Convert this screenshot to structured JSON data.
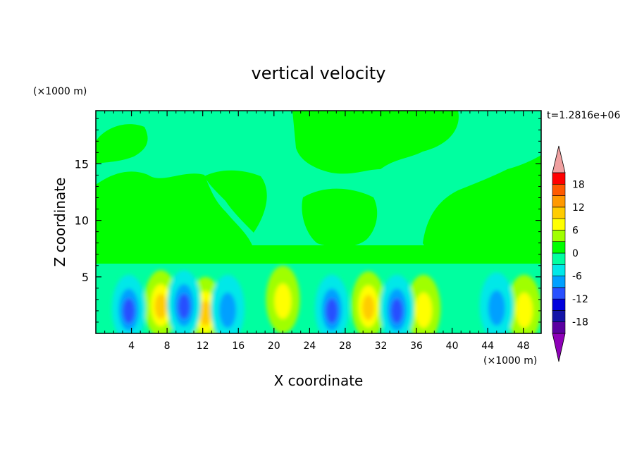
{
  "chart_data": {
    "type": "heatmap",
    "title": "vertical velocity",
    "xlabel": "X coordinate",
    "ylabel": "Z coordinate",
    "x_unit": "(×1000 m)",
    "y_unit": "(×1000 m)",
    "time_label": "t=1.2816e+06",
    "xlim": [
      0,
      50
    ],
    "ylim": [
      0,
      19.7
    ],
    "x_ticks": [
      4,
      8,
      12,
      16,
      20,
      24,
      28,
      32,
      36,
      40,
      44,
      48
    ],
    "y_ticks": [
      5,
      10,
      15
    ],
    "colorbar": {
      "levels": [
        -21,
        -18,
        -15,
        -12,
        -9,
        -6,
        -3,
        0,
        3,
        6,
        9,
        12,
        15,
        18,
        21
      ],
      "tick_labels": [
        18,
        12,
        6,
        0,
        -6,
        -12,
        -18
      ],
      "colors": [
        "#b0f0f0",
        "#8e00b8",
        "#5a00a0",
        "#1414a8",
        "#0000dc",
        "#2850ff",
        "#00a0ff",
        "#00e8e8",
        "#00ffa0",
        "#00ff00",
        "#a0ff00",
        "#ffff00",
        "#ffcc00",
        "#ff9900",
        "#ff5a00",
        "#ff0000",
        "#f0a0a0"
      ]
    },
    "updrafts": [
      {
        "x": 7.3,
        "z": 2.6,
        "peak": 10.5
      },
      {
        "x": 12.3,
        "z": 2.0,
        "peak": 9
      },
      {
        "x": 21.0,
        "z": 3.0,
        "peak": 6.5
      },
      {
        "x": 30.6,
        "z": 2.5,
        "peak": 11
      },
      {
        "x": 36.8,
        "z": 2.2,
        "peak": 8
      },
      {
        "x": 48.1,
        "z": 2.2,
        "peak": 8
      }
    ],
    "downdrafts": [
      {
        "x": 3.7,
        "z": 2.2,
        "peak": -10
      },
      {
        "x": 9.9,
        "z": 2.6,
        "peak": -10
      },
      {
        "x": 14.8,
        "z": 2.2,
        "peak": -6
      },
      {
        "x": 26.5,
        "z": 2.2,
        "peak": -10
      },
      {
        "x": 33.8,
        "z": 2.2,
        "peak": -11
      },
      {
        "x": 45.0,
        "z": 2.4,
        "peak": -7
      }
    ]
  }
}
